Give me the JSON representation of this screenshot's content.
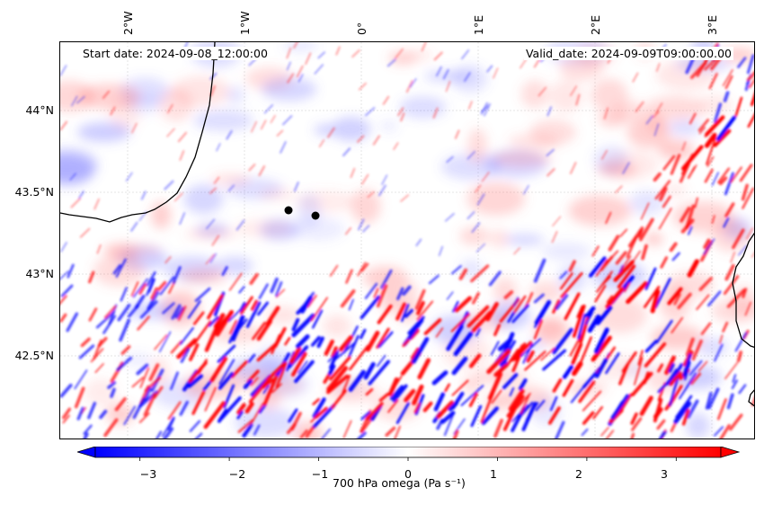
{
  "map": {
    "start_date": "Start date: 2024-09-08_12:00:00",
    "valid_date": "Valid_date: 2024-09-09T09:00:00.00",
    "lon_ticks": [
      "2°W",
      "1°W",
      "0°",
      "1°E",
      "2°E",
      "3°E"
    ],
    "lat_ticks": [
      "44°N",
      "43.5°N",
      "43°N",
      "42.5°N"
    ],
    "points_count": 2
  },
  "colorbar": {
    "label": "700 hPa omega (Pa s⁻¹)",
    "ticks": [
      "−3",
      "−2",
      "−1",
      "0",
      "1",
      "2",
      "3"
    ],
    "range": [
      -3.5,
      3.5
    ],
    "colors": {
      "min": "#0000ff",
      "mid": "#ffffff",
      "max": "#ff0000"
    }
  }
}
